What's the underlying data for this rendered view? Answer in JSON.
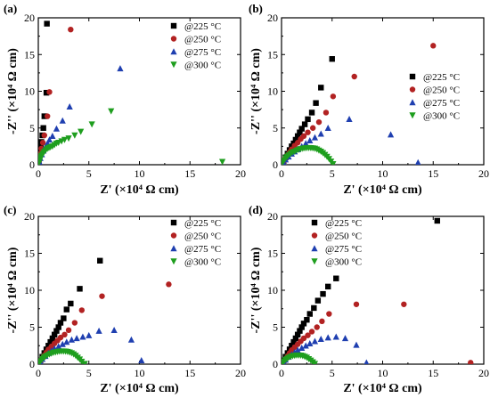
{
  "chart_data": [
    {
      "panel": "(a)",
      "type": "scatter",
      "xlabel": "Z' (×10⁴ Ω cm)",
      "ylabel": "-Z'' (×10⁴ Ω cm)",
      "xlim": [
        0,
        20
      ],
      "ylim": [
        0,
        20
      ],
      "xticks": [
        0,
        5,
        10,
        15,
        20
      ],
      "yticks": [
        0,
        5,
        10,
        15,
        20
      ],
      "series": [
        {
          "name": "@225 °C",
          "marker": "square",
          "color": "#000000",
          "x": [
            0.05,
            0.1,
            0.15,
            0.2,
            0.25,
            0.3,
            0.4,
            0.5,
            0.6,
            0.8,
            0.85
          ],
          "y": [
            0.4,
            0.9,
            1.4,
            1.9,
            2.5,
            3.1,
            4.0,
            5.0,
            6.6,
            9.8,
            19.2
          ]
        },
        {
          "name": "@250 °C",
          "marker": "circle",
          "color": "#b22222",
          "x": [
            0.05,
            0.1,
            0.2,
            0.3,
            0.45,
            0.6,
            0.9,
            1.1,
            3.2
          ],
          "y": [
            0.4,
            0.9,
            1.5,
            2.2,
            3.0,
            4.0,
            6.6,
            9.9,
            18.4
          ]
        },
        {
          "name": "@275 °C",
          "marker": "triangle-up",
          "color": "#1f3fb0",
          "x": [
            0.1,
            0.2,
            0.35,
            0.5,
            0.7,
            0.9,
            1.1,
            1.4,
            1.8,
            2.4,
            3.1,
            8.1
          ],
          "y": [
            0.4,
            0.9,
            1.4,
            1.9,
            2.4,
            2.9,
            3.4,
            3.9,
            4.9,
            6.0,
            7.9,
            13.1
          ]
        },
        {
          "name": "@300 °C",
          "marker": "triangle-down",
          "color": "#1e9e1e",
          "x": [
            0.05,
            0.1,
            0.15,
            0.2,
            0.25,
            0.3,
            0.4,
            0.5,
            0.6,
            0.75,
            0.9,
            1.05,
            1.2,
            1.4,
            1.6,
            1.8,
            2.0,
            2.3,
            2.6,
            3.0,
            3.6,
            4.2,
            5.3,
            7.2,
            18.2
          ],
          "y": [
            0.2,
            0.4,
            0.6,
            0.8,
            1.0,
            1.2,
            1.4,
            1.6,
            1.8,
            2.0,
            2.2,
            2.3,
            2.4,
            2.5,
            2.7,
            2.9,
            3.0,
            3.2,
            3.4,
            3.6,
            4.0,
            4.5,
            5.5,
            7.3,
            0.4
          ]
        }
      ],
      "legend_position": "upper-right"
    },
    {
      "panel": "(b)",
      "type": "scatter",
      "xlabel": "Z' (×10⁴ Ω cm)",
      "ylabel": "-Z'' (×10⁴ Ω cm)",
      "xlim": [
        0,
        20
      ],
      "ylim": [
        0,
        20
      ],
      "xticks": [
        0,
        5,
        10,
        15,
        20
      ],
      "yticks": [
        0,
        5,
        10,
        15,
        20
      ],
      "series": [
        {
          "name": "@225 °C",
          "marker": "square",
          "color": "#000000",
          "x": [
            0.2,
            0.4,
            0.6,
            0.8,
            1.0,
            1.2,
            1.4,
            1.6,
            1.8,
            2.0,
            2.3,
            2.6,
            3.0,
            3.4,
            3.9,
            5.0
          ],
          "y": [
            0.5,
            1.0,
            1.5,
            2.0,
            2.5,
            2.9,
            3.4,
            3.9,
            4.4,
            4.9,
            5.5,
            6.2,
            7.1,
            8.4,
            10.5,
            14.4
          ]
        },
        {
          "name": "@250 °C",
          "marker": "circle",
          "color": "#b22222",
          "x": [
            0.2,
            0.4,
            0.6,
            0.8,
            1.0,
            1.3,
            1.6,
            1.9,
            2.2,
            2.6,
            3.1,
            3.7,
            4.4,
            5.1,
            7.2,
            15.0
          ],
          "y": [
            0.4,
            0.9,
            1.3,
            1.7,
            2.1,
            2.6,
            3.0,
            3.5,
            3.9,
            4.4,
            5.0,
            5.8,
            7.1,
            9.3,
            12.0,
            16.2
          ]
        },
        {
          "name": "@275 °C",
          "marker": "triangle-up",
          "color": "#1f3fb0",
          "x": [
            0.2,
            0.4,
            0.7,
            1.0,
            1.3,
            1.6,
            2.0,
            2.4,
            2.8,
            3.3,
            3.9,
            4.6,
            6.7,
            10.8,
            13.5
          ],
          "y": [
            0.3,
            0.7,
            1.1,
            1.5,
            1.8,
            2.1,
            2.5,
            2.9,
            3.3,
            3.7,
            4.2,
            5.0,
            6.2,
            4.1,
            0.3
          ]
        },
        {
          "name": "@300 °C",
          "marker": "triangle-down",
          "color": "#1e9e1e",
          "x": [
            0.1,
            0.25,
            0.4,
            0.55,
            0.7,
            0.9,
            1.1,
            1.3,
            1.5,
            1.7,
            1.9,
            2.1,
            2.3,
            2.5,
            2.7,
            2.9,
            3.1,
            3.3,
            3.5,
            3.7,
            3.9,
            4.1,
            4.3,
            4.5,
            4.7,
            4.9,
            5.1
          ],
          "y": [
            0.3,
            0.6,
            0.9,
            1.1,
            1.3,
            1.5,
            1.7,
            1.8,
            1.95,
            2.05,
            2.15,
            2.2,
            2.25,
            2.28,
            2.3,
            2.28,
            2.25,
            2.2,
            2.1,
            1.95,
            1.8,
            1.6,
            1.35,
            1.1,
            0.8,
            0.45,
            0.1
          ]
        }
      ],
      "legend_position": "center-right"
    },
    {
      "panel": "(c)",
      "type": "scatter",
      "xlabel": "Z' (×10⁴ Ω cm)",
      "ylabel": "-Z'' (×10⁴ Ω cm)",
      "xlim": [
        0,
        20
      ],
      "ylim": [
        0,
        20
      ],
      "xticks": [
        0,
        5,
        10,
        15,
        20
      ],
      "yticks": [
        0,
        5,
        10,
        15,
        20
      ],
      "series": [
        {
          "name": "@225 °C",
          "marker": "square",
          "color": "#000000",
          "x": [
            0.2,
            0.4,
            0.6,
            0.8,
            1.0,
            1.2,
            1.4,
            1.6,
            1.8,
            2.0,
            2.2,
            2.5,
            2.8,
            3.2,
            4.1,
            6.1
          ],
          "y": [
            0.5,
            1.0,
            1.5,
            2.0,
            2.5,
            3.0,
            3.5,
            4.0,
            4.5,
            5.0,
            5.6,
            6.2,
            7.4,
            8.2,
            10.2,
            14.0
          ]
        },
        {
          "name": "@250 °C",
          "marker": "circle",
          "color": "#b22222",
          "x": [
            0.2,
            0.4,
            0.6,
            0.8,
            1.0,
            1.3,
            1.6,
            1.9,
            2.2,
            2.6,
            3.0,
            3.6,
            4.3,
            6.3,
            12.9
          ],
          "y": [
            0.4,
            0.8,
            1.2,
            1.6,
            2.0,
            2.4,
            2.8,
            3.2,
            3.6,
            4.0,
            4.6,
            5.6,
            7.3,
            9.2,
            10.8
          ]
        },
        {
          "name": "@275 °C",
          "marker": "triangle-up",
          "color": "#1f3fb0",
          "x": [
            0.2,
            0.4,
            0.7,
            1.0,
            1.3,
            1.6,
            2.0,
            2.4,
            2.8,
            3.3,
            3.8,
            4.4,
            5.0,
            6.0,
            7.5,
            9.2,
            10.2
          ],
          "y": [
            0.3,
            0.7,
            1.1,
            1.5,
            1.8,
            2.1,
            2.4,
            2.7,
            3.0,
            3.3,
            3.5,
            3.7,
            3.9,
            4.5,
            4.6,
            3.3,
            0.5
          ]
        },
        {
          "name": "@300 °C",
          "marker": "triangle-down",
          "color": "#1e9e1e",
          "x": [
            0.1,
            0.25,
            0.4,
            0.55,
            0.7,
            0.9,
            1.1,
            1.3,
            1.5,
            1.7,
            1.9,
            2.1,
            2.3,
            2.5,
            2.7,
            2.9,
            3.1,
            3.3,
            3.5,
            3.7,
            3.9,
            4.1,
            4.3,
            4.6
          ],
          "y": [
            0.2,
            0.45,
            0.7,
            0.9,
            1.05,
            1.2,
            1.35,
            1.45,
            1.55,
            1.62,
            1.68,
            1.72,
            1.74,
            1.74,
            1.72,
            1.68,
            1.6,
            1.5,
            1.35,
            1.15,
            0.9,
            0.65,
            0.35,
            0.05
          ]
        }
      ],
      "legend_position": "upper-right"
    },
    {
      "panel": "(d)",
      "type": "scatter",
      "xlabel": "Z' (×10⁴ Ω cm)",
      "ylabel": "-Z'' (×10⁴ Ω cm)",
      "xlim": [
        0,
        20
      ],
      "ylim": [
        0,
        20
      ],
      "xticks": [
        0,
        5,
        10,
        15,
        20
      ],
      "yticks": [
        0,
        5,
        10,
        15,
        20
      ],
      "series": [
        {
          "name": "@225 °C",
          "marker": "square",
          "color": "#000000",
          "x": [
            0.2,
            0.4,
            0.6,
            0.8,
            1.0,
            1.2,
            1.4,
            1.6,
            1.8,
            2.0,
            2.2,
            2.5,
            2.8,
            3.2,
            3.6,
            4.1,
            4.6,
            5.4,
            15.4
          ],
          "y": [
            0.5,
            1.0,
            1.5,
            2.0,
            2.5,
            3.0,
            3.5,
            4.0,
            4.5,
            5.0,
            5.5,
            6.0,
            6.8,
            7.6,
            8.6,
            9.5,
            10.5,
            11.6,
            19.4
          ]
        },
        {
          "name": "@250 °C",
          "marker": "circle",
          "color": "#b22222",
          "x": [
            0.2,
            0.4,
            0.6,
            0.8,
            1.0,
            1.3,
            1.6,
            1.9,
            2.2,
            2.6,
            3.0,
            3.5,
            4.0,
            4.7,
            7.4,
            12.1,
            18.7
          ],
          "y": [
            0.3,
            0.7,
            1.1,
            1.5,
            1.9,
            2.3,
            2.7,
            3.1,
            3.5,
            3.9,
            4.4,
            5.0,
            5.8,
            6.8,
            8.1,
            8.1,
            0.2
          ]
        },
        {
          "name": "@275 °C",
          "marker": "triangle-up",
          "color": "#1f3fb0",
          "x": [
            0.2,
            0.4,
            0.7,
            1.0,
            1.3,
            1.6,
            2.0,
            2.4,
            2.8,
            3.3,
            3.9,
            4.6,
            5.4,
            6.3,
            7.4,
            8.4
          ],
          "y": [
            0.3,
            0.6,
            1.0,
            1.3,
            1.6,
            1.9,
            2.2,
            2.5,
            2.8,
            3.1,
            3.4,
            3.6,
            3.7,
            3.5,
            2.6,
            0.2
          ]
        },
        {
          "name": "@300 °C",
          "marker": "triangle-down",
          "color": "#1e9e1e",
          "x": [
            0.1,
            0.25,
            0.4,
            0.55,
            0.7,
            0.9,
            1.1,
            1.3,
            1.5,
            1.7,
            1.9,
            2.1,
            2.3,
            2.5,
            2.7,
            2.9,
            3.1,
            3.3
          ],
          "y": [
            0.2,
            0.4,
            0.6,
            0.75,
            0.9,
            1.0,
            1.1,
            1.15,
            1.2,
            1.2,
            1.18,
            1.12,
            1.02,
            0.9,
            0.7,
            0.5,
            0.28,
            0.05
          ]
        }
      ],
      "legend_position": "upper-center"
    }
  ]
}
